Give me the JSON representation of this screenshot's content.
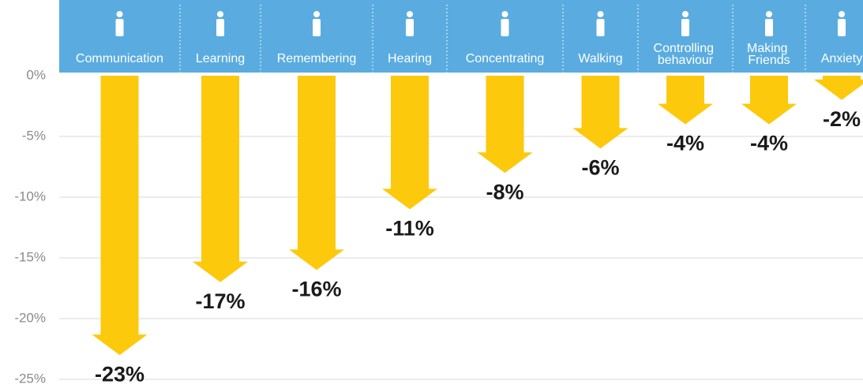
{
  "chart_data": {
    "type": "arrow-bar",
    "categories": [
      "Communication",
      "Learning",
      "Remembering",
      "Hearing",
      "Concentrating",
      "Walking",
      "Controlling behaviour",
      "Making Friends",
      "Anxiety"
    ],
    "values": [
      -23,
      -17,
      -16,
      -11,
      -8,
      -6,
      -4,
      -4,
      -2
    ],
    "value_labels": [
      "-23%",
      "-17%",
      "-16%",
      "-11%",
      "-8%",
      "-6%",
      "-4%",
      "-4%",
      "-2%"
    ],
    "color": "#fcc90c",
    "header_color": "#5aace0",
    "ylim": [
      0,
      -25
    ],
    "yticks": [
      {
        "value": 0,
        "label": "0%"
      },
      {
        "value": -5,
        "label": "-5%"
      },
      {
        "value": -10,
        "label": "-10%"
      },
      {
        "value": -15,
        "label": "-15%"
      },
      {
        "value": -20,
        "label": "-20%"
      },
      {
        "value": -25,
        "label": "-25%"
      }
    ],
    "grid": true
  }
}
